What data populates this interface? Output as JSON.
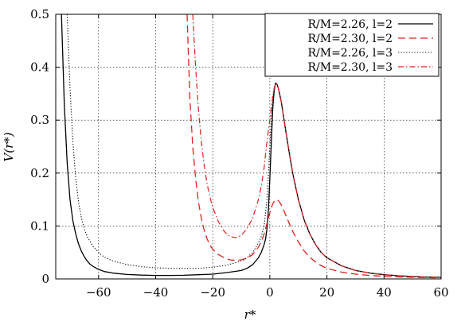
{
  "chart_data": {
    "type": "line",
    "xlabel": "r*",
    "ylabel": "V(r*)",
    "xlim": [
      -75,
      60
    ],
    "ylim": [
      0,
      0.5
    ],
    "x_ticks": [
      -60,
      -40,
      -20,
      0,
      20,
      40,
      60
    ],
    "x_tick_labels": [
      "−60",
      "−40",
      "−20",
      "0",
      "20",
      "40",
      "60"
    ],
    "y_ticks": [
      0,
      0.1,
      0.2,
      0.3,
      0.4,
      0.5
    ],
    "y_tick_labels": [
      "0",
      "0.1",
      "0.2",
      "0.3",
      "0.4",
      "0.5"
    ],
    "grid": true,
    "legend_position": "top-right",
    "series": [
      {
        "name": "R/M=2.26, l=2",
        "color": "#000000",
        "dash": "solid",
        "points": [
          [
            -73,
            0.5
          ],
          [
            -72,
            0.33
          ],
          [
            -71,
            0.22
          ],
          [
            -70,
            0.15
          ],
          [
            -69,
            0.11
          ],
          [
            -68,
            0.085
          ],
          [
            -67,
            0.066
          ],
          [
            -66,
            0.052
          ],
          [
            -65,
            0.042
          ],
          [
            -64,
            0.034
          ],
          [
            -63,
            0.028
          ],
          [
            -62,
            0.024
          ],
          [
            -60,
            0.018
          ],
          [
            -58,
            0.014
          ],
          [
            -55,
            0.011
          ],
          [
            -50,
            0.0085
          ],
          [
            -45,
            0.0072
          ],
          [
            -40,
            0.0066
          ],
          [
            -35,
            0.0066
          ],
          [
            -30,
            0.007
          ],
          [
            -25,
            0.008
          ],
          [
            -20,
            0.009
          ],
          [
            -15,
            0.012
          ],
          [
            -10,
            0.016
          ],
          [
            -8,
            0.02
          ],
          [
            -6,
            0.027
          ],
          [
            -4,
            0.04
          ],
          [
            -3,
            0.05
          ],
          [
            -2,
            0.065
          ],
          [
            -1.5,
            0.075
          ],
          [
            -1,
            0.095
          ],
          [
            -0.5,
            0.13
          ],
          [
            0,
            0.19
          ],
          [
            0.5,
            0.255
          ],
          [
            1,
            0.32
          ],
          [
            1.5,
            0.355
          ],
          [
            2,
            0.37
          ],
          [
            2.5,
            0.368
          ],
          [
            3,
            0.36
          ],
          [
            4,
            0.335
          ],
          [
            5,
            0.3
          ],
          [
            6,
            0.265
          ],
          [
            7,
            0.232
          ],
          [
            8,
            0.2
          ],
          [
            10,
            0.15
          ],
          [
            12,
            0.112
          ],
          [
            14,
            0.085
          ],
          [
            16,
            0.065
          ],
          [
            18,
            0.05
          ],
          [
            20,
            0.04
          ],
          [
            25,
            0.025
          ],
          [
            30,
            0.016
          ],
          [
            35,
            0.011
          ],
          [
            40,
            0.008
          ],
          [
            45,
            0.006
          ],
          [
            50,
            0.0045
          ],
          [
            55,
            0.0035
          ],
          [
            60,
            0.003
          ]
        ]
      },
      {
        "name": "R/M=2.30, l=2",
        "color": "#e02020",
        "dash": "long",
        "points": [
          [
            -29,
            0.5
          ],
          [
            -28.5,
            0.42
          ],
          [
            -28,
            0.34
          ],
          [
            -27,
            0.25
          ],
          [
            -26,
            0.19
          ],
          [
            -25,
            0.145
          ],
          [
            -24,
            0.115
          ],
          [
            -23,
            0.092
          ],
          [
            -22,
            0.076
          ],
          [
            -21,
            0.064
          ],
          [
            -20,
            0.056
          ],
          [
            -18,
            0.046
          ],
          [
            -16,
            0.04
          ],
          [
            -14,
            0.036
          ],
          [
            -12,
            0.035
          ],
          [
            -10,
            0.036
          ],
          [
            -8,
            0.039
          ],
          [
            -6,
            0.046
          ],
          [
            -4,
            0.06
          ],
          [
            -3,
            0.07
          ],
          [
            -2,
            0.085
          ],
          [
            -1,
            0.105
          ],
          [
            0,
            0.125
          ],
          [
            1,
            0.142
          ],
          [
            2,
            0.15
          ],
          [
            3,
            0.148
          ],
          [
            4,
            0.14
          ],
          [
            5,
            0.128
          ],
          [
            6,
            0.115
          ],
          [
            8,
            0.09
          ],
          [
            10,
            0.07
          ],
          [
            12,
            0.053
          ],
          [
            14,
            0.041
          ],
          [
            16,
            0.032
          ],
          [
            18,
            0.025
          ],
          [
            20,
            0.02
          ],
          [
            25,
            0.013
          ],
          [
            30,
            0.009
          ],
          [
            35,
            0.0065
          ],
          [
            40,
            0.005
          ],
          [
            45,
            0.0038
          ],
          [
            50,
            0.003
          ],
          [
            55,
            0.0025
          ],
          [
            60,
            0.002
          ]
        ]
      },
      {
        "name": "R/M=2.26, l=3",
        "color": "#000000",
        "dash": "dotted",
        "points": [
          [
            -71,
            0.5
          ],
          [
            -70,
            0.36
          ],
          [
            -69,
            0.26
          ],
          [
            -68,
            0.19
          ],
          [
            -67,
            0.145
          ],
          [
            -66,
            0.115
          ],
          [
            -65,
            0.095
          ],
          [
            -64,
            0.08
          ],
          [
            -62,
            0.062
          ],
          [
            -60,
            0.05
          ],
          [
            -58,
            0.041
          ],
          [
            -55,
            0.034
          ],
          [
            -50,
            0.027
          ],
          [
            -45,
            0.023
          ],
          [
            -40,
            0.021
          ],
          [
            -35,
            0.02
          ],
          [
            -30,
            0.0198
          ],
          [
            -25,
            0.02
          ],
          [
            -20,
            0.022
          ],
          [
            -15,
            0.026
          ],
          [
            -10,
            0.034
          ],
          [
            -8,
            0.04
          ],
          [
            -6,
            0.05
          ],
          [
            -4,
            0.068
          ],
          [
            -3,
            0.08
          ],
          [
            -2,
            0.1
          ],
          [
            -1,
            0.15
          ],
          [
            -0.5,
            0.2
          ],
          [
            0,
            0.25
          ],
          [
            0.5,
            0.3
          ],
          [
            1,
            0.34
          ],
          [
            1.5,
            0.36
          ],
          [
            2,
            0.37
          ],
          [
            2.5,
            0.368
          ],
          [
            3,
            0.36
          ],
          [
            4,
            0.335
          ],
          [
            5,
            0.3
          ],
          [
            6,
            0.265
          ],
          [
            7,
            0.232
          ],
          [
            8,
            0.2
          ],
          [
            10,
            0.15
          ],
          [
            12,
            0.112
          ],
          [
            14,
            0.085
          ],
          [
            16,
            0.065
          ],
          [
            18,
            0.05
          ],
          [
            20,
            0.04
          ],
          [
            25,
            0.025
          ],
          [
            30,
            0.016
          ],
          [
            35,
            0.011
          ],
          [
            40,
            0.008
          ],
          [
            45,
            0.006
          ],
          [
            50,
            0.0045
          ],
          [
            55,
            0.0035
          ],
          [
            60,
            0.003
          ]
        ]
      },
      {
        "name": "R/M=2.30, l=3",
        "color": "#e02020",
        "dash": "dashdot",
        "points": [
          [
            -27,
            0.5
          ],
          [
            -26,
            0.4
          ],
          [
            -25,
            0.32
          ],
          [
            -24,
            0.26
          ],
          [
            -23,
            0.215
          ],
          [
            -22,
            0.18
          ],
          [
            -21,
            0.155
          ],
          [
            -20,
            0.135
          ],
          [
            -18,
            0.108
          ],
          [
            -16,
            0.09
          ],
          [
            -14,
            0.08
          ],
          [
            -12,
            0.078
          ],
          [
            -10,
            0.082
          ],
          [
            -8,
            0.095
          ],
          [
            -6,
            0.115
          ],
          [
            -4,
            0.15
          ],
          [
            -3,
            0.175
          ],
          [
            -2,
            0.21
          ],
          [
            -1,
            0.26
          ],
          [
            0,
            0.3
          ],
          [
            1,
            0.345
          ],
          [
            1.5,
            0.36
          ],
          [
            2,
            0.37
          ],
          [
            2.5,
            0.368
          ],
          [
            3,
            0.36
          ],
          [
            4,
            0.335
          ],
          [
            5,
            0.3
          ],
          [
            6,
            0.265
          ],
          [
            7,
            0.232
          ],
          [
            8,
            0.2
          ],
          [
            10,
            0.15
          ],
          [
            12,
            0.112
          ],
          [
            14,
            0.085
          ],
          [
            16,
            0.065
          ],
          [
            18,
            0.05
          ],
          [
            20,
            0.04
          ],
          [
            25,
            0.025
          ],
          [
            30,
            0.016
          ],
          [
            35,
            0.011
          ],
          [
            40,
            0.008
          ],
          [
            45,
            0.006
          ],
          [
            50,
            0.0045
          ],
          [
            55,
            0.0035
          ],
          [
            60,
            0.003
          ]
        ]
      }
    ]
  }
}
